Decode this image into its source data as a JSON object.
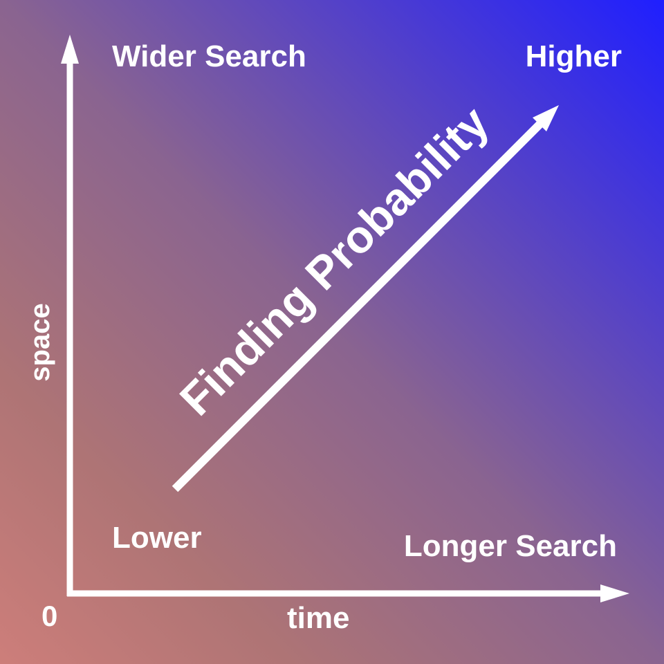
{
  "diagram": {
    "top_left": "Wider Search",
    "top_right": "Higher",
    "bottom_left": "Lower",
    "bottom_right": "Longer Search",
    "origin": "0",
    "x_axis": "time",
    "y_axis": "space",
    "diagonal": "Finding Probability"
  },
  "colors": {
    "gradient_start": "#cd7e7a",
    "gradient_mid": "#8a6490",
    "gradient_end": "#1f1fff",
    "foreground": "#ffffff"
  }
}
